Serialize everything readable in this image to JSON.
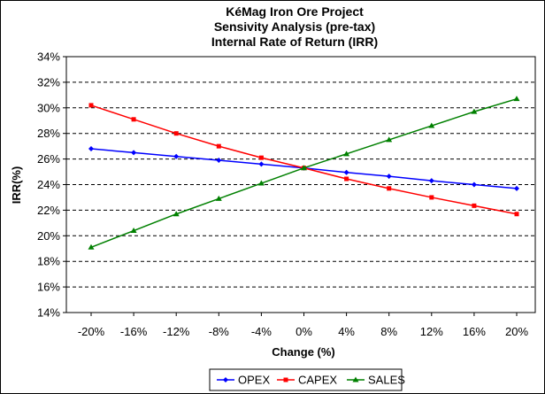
{
  "chart_data": {
    "type": "line",
    "title_lines": [
      "KéMag Iron Ore Project",
      "Sensivity Analysis (pre-tax)",
      "Internal Rate of Return (IRR)"
    ],
    "xlabel": "Change (%)",
    "ylabel": "IRR(%)",
    "x": [
      -20,
      -16,
      -12,
      -8,
      -4,
      0,
      4,
      8,
      12,
      16,
      20
    ],
    "x_tick_labels": [
      "-20%",
      "-16%",
      "-12%",
      "-8%",
      "-4%",
      "0%",
      "4%",
      "8%",
      "12%",
      "16%",
      "20%"
    ],
    "y_tick_values": [
      14,
      16,
      18,
      20,
      22,
      24,
      26,
      28,
      30,
      32,
      34
    ],
    "y_tick_labels": [
      "14%",
      "16%",
      "18%",
      "20%",
      "22%",
      "24%",
      "26%",
      "28%",
      "30%",
      "32%",
      "34%"
    ],
    "ylim": [
      14,
      34
    ],
    "grid": "horizontal-dashed",
    "legend_position": "bottom",
    "series": [
      {
        "name": "OPEX",
        "color": "#0000ff",
        "marker": "diamond",
        "values": [
          26.8,
          26.5,
          26.2,
          25.9,
          25.6,
          25.3,
          24.95,
          24.65,
          24.3,
          24.0,
          23.7
        ]
      },
      {
        "name": "CAPEX",
        "color": "#ff0000",
        "marker": "square",
        "values": [
          30.2,
          29.1,
          28.0,
          27.0,
          26.1,
          25.3,
          24.45,
          23.7,
          23.0,
          22.35,
          21.7
        ]
      },
      {
        "name": "SALES",
        "color": "#008000",
        "marker": "triangle",
        "values": [
          19.1,
          20.4,
          21.7,
          22.9,
          24.1,
          25.3,
          26.4,
          27.5,
          28.6,
          29.7,
          30.7
        ]
      }
    ]
  }
}
